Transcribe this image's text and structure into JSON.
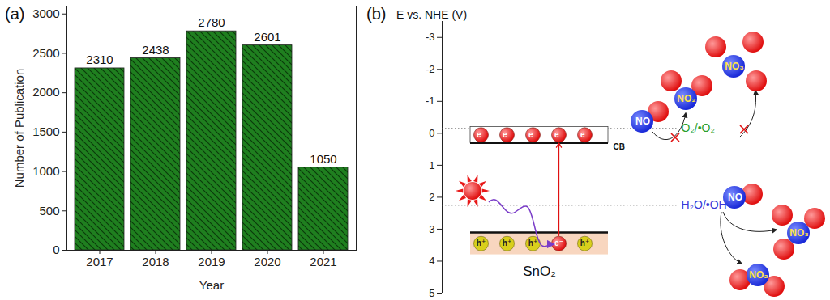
{
  "chart_data": [
    {
      "type": "bar",
      "panel_label": "(a)",
      "x_label": "Year",
      "y_label": "Number of Publication",
      "categories": [
        "2017",
        "2018",
        "2019",
        "2020",
        "2021"
      ],
      "values": [
        2310,
        2438,
        2780,
        2601,
        1050
      ],
      "color": "#1f7f1f",
      "ylim": [
        0,
        3100
      ],
      "yticks": [
        0,
        500,
        1000,
        1500,
        2000,
        2500,
        3000
      ],
      "data_labels": true
    },
    {
      "type": "band_diagram",
      "panel_label": "(b)",
      "y_label": "E vs. NHE (V)",
      "ylim": [
        -3.5,
        5
      ],
      "yticks": [
        -3,
        -2,
        -1,
        0,
        1,
        2,
        3,
        4,
        5
      ],
      "conduction_band": [
        -0.2,
        0.3
      ],
      "valence_band": [
        3.1,
        3.8
      ],
      "band_label": "CB",
      "material": "SnO₂",
      "levels": [
        {
          "label": "O₂/•O₂",
          "value": -0.15,
          "color": "#2ca02c"
        },
        {
          "label": "H₂O/•OH",
          "value": 2.25,
          "color": "#3a3ad8"
        }
      ],
      "cb_particles": [
        "e⁻",
        "e⁻",
        "e⁻",
        "e⁻",
        "e⁻"
      ],
      "vb_particles": [
        "h⁺",
        "h⁺",
        "h⁺",
        "e⁻",
        "h⁺"
      ],
      "species_top": [
        "NO",
        "NO₂",
        "NO₃"
      ],
      "species_bottom": [
        "NO",
        "NO₃",
        "NO₂"
      ]
    }
  ]
}
